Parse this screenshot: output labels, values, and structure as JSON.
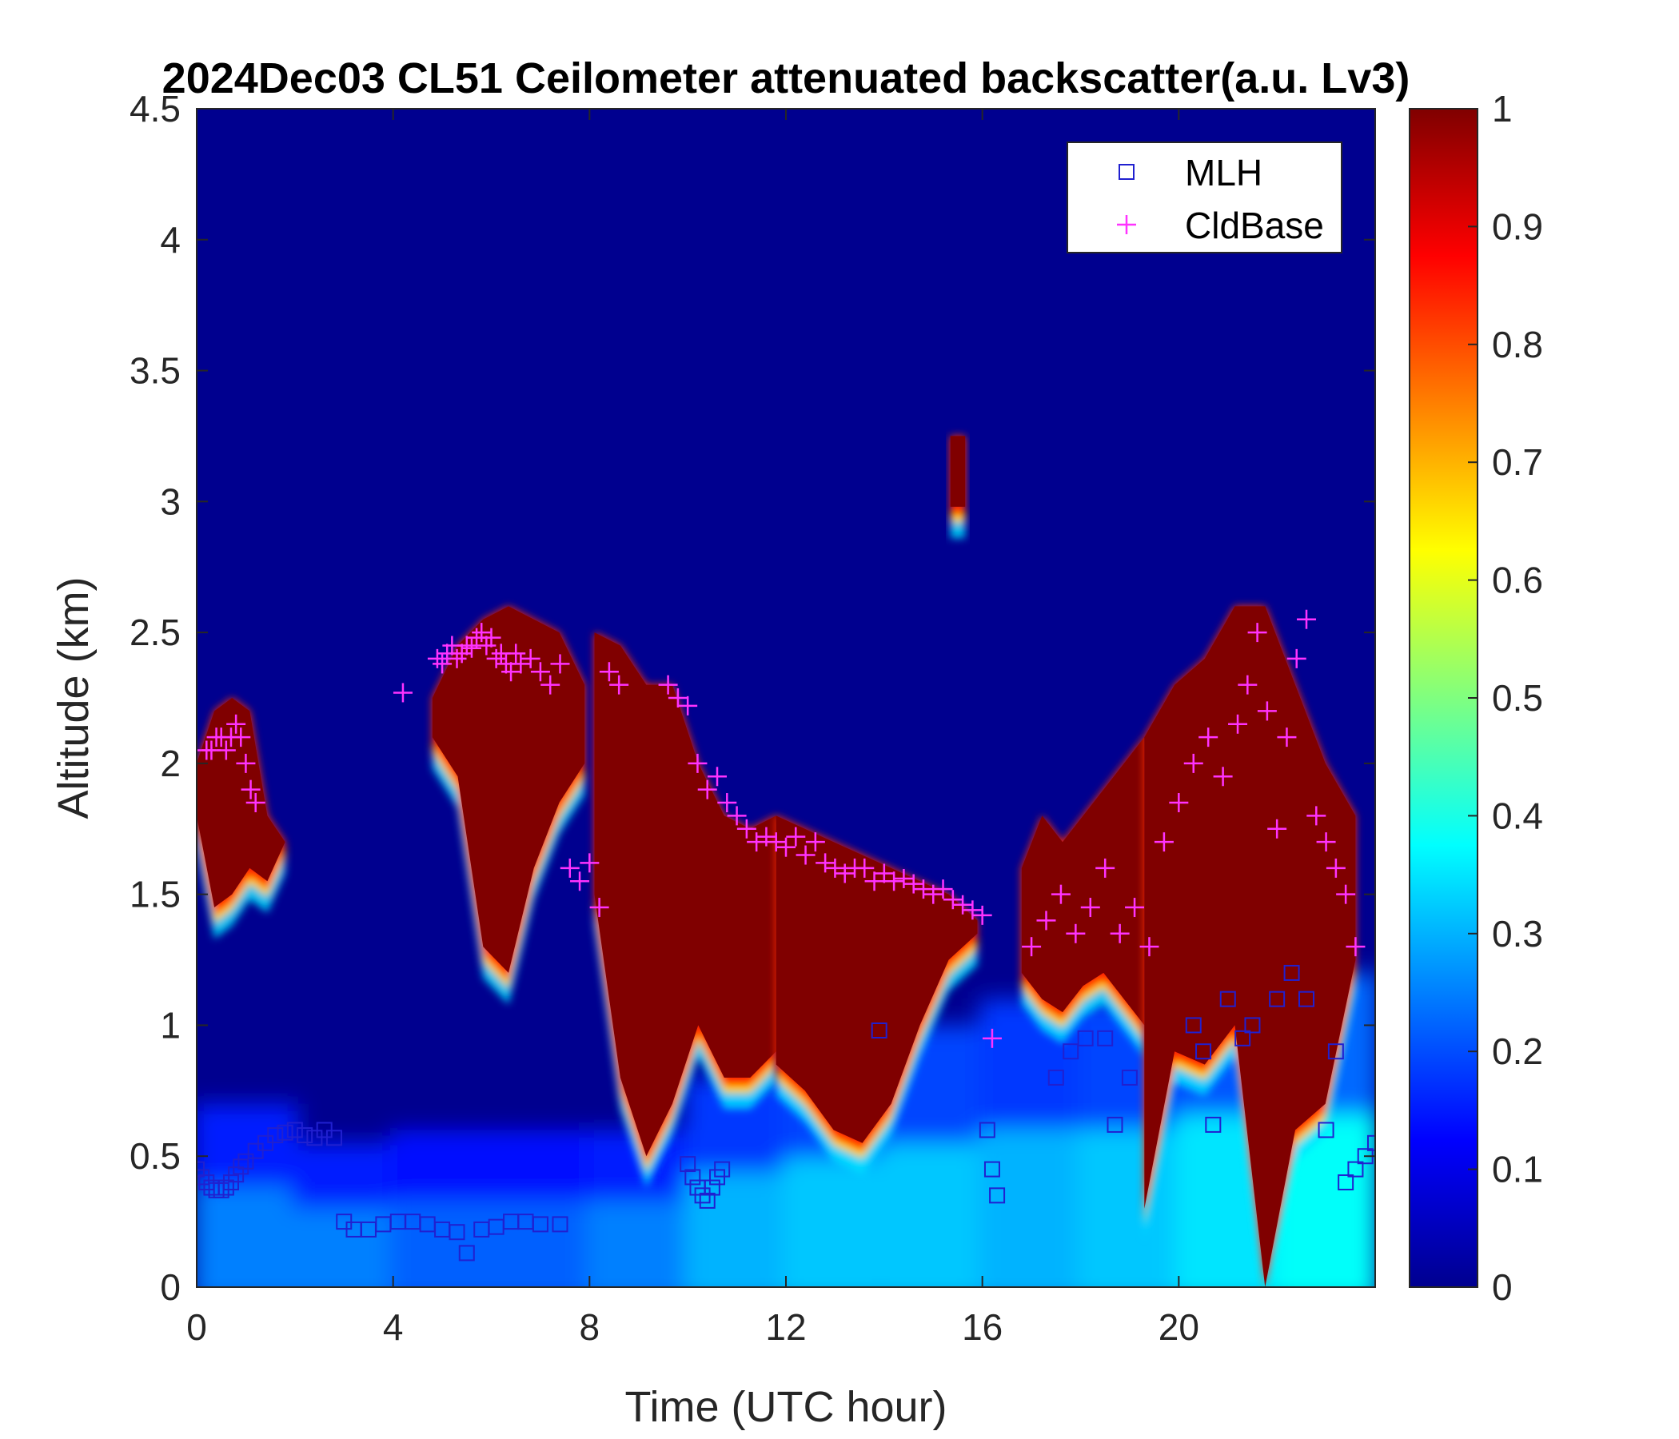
{
  "chart_data": {
    "type": "heatmap",
    "title": "2024Dec03 CL51 Ceilometer attenuated backscatter(a.u. Lv3)",
    "xlabel": "Time (UTC hour)",
    "ylabel": "Altitude (km)",
    "xlim": [
      0,
      24
    ],
    "ylim": [
      0,
      4.5
    ],
    "x_ticks": [
      0,
      4,
      8,
      12,
      16,
      20
    ],
    "x_tick_labels": [
      "0",
      "4",
      "8",
      "12",
      "16",
      "20"
    ],
    "y_ticks": [
      0,
      0.5,
      1,
      1.5,
      2,
      2.5,
      3,
      3.5,
      4,
      4.5
    ],
    "y_tick_labels": [
      "0",
      "0.5",
      "1",
      "1.5",
      "2",
      "2.5",
      "3",
      "3.5",
      "4",
      "4.5"
    ],
    "colorbar": {
      "colormap": "jet",
      "range": [
        0,
        1
      ],
      "ticks": [
        0,
        0.1,
        0.2,
        0.3,
        0.4,
        0.5,
        0.6,
        0.7,
        0.8,
        0.9,
        1
      ],
      "tick_labels": [
        "0",
        "0.1",
        "0.2",
        "0.3",
        "0.4",
        "0.5",
        "0.6",
        "0.7",
        "0.8",
        "0.9",
        "1"
      ]
    },
    "legend": {
      "position": "top-right",
      "entries": [
        "MLH",
        "CldBase"
      ]
    },
    "colors": {
      "mlh": "#2020d0",
      "cldbase": "#ff33ff",
      "background": "#00008f"
    },
    "cloud_layers": [
      {
        "x_start": 0.0,
        "x_end": 1.8,
        "top": [
          2.0,
          2.2,
          2.25,
          2.2,
          1.8,
          1.7
        ],
        "base": [
          1.8,
          1.45,
          1.5,
          1.6,
          1.55,
          1.7
        ]
      },
      {
        "x_start": 4.8,
        "x_end": 7.9,
        "top": [
          2.25,
          2.45,
          2.55,
          2.6,
          2.55,
          2.5,
          2.3
        ],
        "base": [
          2.1,
          1.95,
          1.3,
          1.2,
          1.6,
          1.85,
          2.0
        ]
      },
      {
        "x_start": 8.1,
        "x_end": 11.8,
        "top": [
          2.5,
          2.45,
          2.3,
          2.3,
          2.0,
          1.8,
          1.75,
          1.8
        ],
        "base": [
          1.5,
          0.8,
          0.5,
          0.7,
          1.0,
          0.8,
          0.8,
          0.9
        ]
      },
      {
        "x_start": 11.8,
        "x_end": 15.9,
        "top": [
          1.8,
          1.75,
          1.7,
          1.65,
          1.6,
          1.55,
          1.5,
          1.4
        ],
        "base": [
          0.85,
          0.75,
          0.6,
          0.55,
          0.7,
          1.0,
          1.25,
          1.35
        ]
      },
      {
        "x_start": 15.35,
        "x_end": 15.65,
        "top": [
          3.25,
          3.25
        ],
        "base": [
          2.98,
          2.98
        ]
      },
      {
        "x_start": 16.8,
        "x_end": 19.3,
        "top": [
          1.6,
          1.8,
          1.7,
          1.8,
          1.9,
          2.0,
          2.1
        ],
        "base": [
          1.2,
          1.1,
          1.05,
          1.15,
          1.2,
          1.1,
          1.0
        ]
      },
      {
        "x_start": 19.3,
        "x_end": 23.6,
        "top": [
          2.1,
          2.3,
          2.4,
          2.6,
          2.6,
          2.3,
          2.0,
          1.8
        ],
        "base": [
          0.3,
          0.9,
          0.85,
          1.0,
          0.0,
          0.6,
          0.7,
          1.25
        ]
      }
    ],
    "aerosol_layers": [
      {
        "x_start": 0.0,
        "x_end": 24.0,
        "top": [
          0.7,
          0.5,
          0.55,
          0.6,
          0.6,
          0.6,
          0.8,
          0.9,
          1.0,
          1.1,
          1.0,
          1.2,
          1.2
        ],
        "level": [
          0.25,
          0.25,
          0.22,
          0.22,
          0.25,
          0.3,
          0.32,
          0.32,
          0.3,
          0.32,
          0.35,
          0.38,
          0.33
        ]
      }
    ],
    "series": [
      {
        "name": "MLH",
        "marker": "square",
        "x": [
          0.0,
          0.1,
          0.2,
          0.3,
          0.4,
          0.5,
          0.6,
          0.7,
          0.8,
          0.9,
          1.0,
          1.2,
          1.4,
          1.6,
          1.8,
          2.0,
          2.2,
          2.4,
          2.6,
          2.8,
          3.0,
          3.2,
          3.5,
          3.8,
          4.1,
          4.4,
          4.7,
          5.0,
          5.3,
          5.5,
          5.8,
          6.1,
          6.4,
          6.7,
          7.0,
          7.4,
          10.0,
          10.1,
          10.2,
          10.3,
          10.4,
          10.5,
          10.6,
          10.7,
          13.9,
          16.1,
          16.2,
          16.3,
          17.5,
          17.8,
          18.1,
          18.5,
          18.7,
          19.0,
          20.3,
          20.5,
          20.7,
          21.0,
          21.3,
          21.5,
          22.0,
          22.3,
          22.6,
          23.0,
          23.2,
          23.4,
          23.6,
          23.8,
          24.0
        ],
        "y": [
          0.45,
          0.42,
          0.4,
          0.38,
          0.37,
          0.37,
          0.38,
          0.4,
          0.43,
          0.46,
          0.48,
          0.52,
          0.55,
          0.58,
          0.59,
          0.6,
          0.58,
          0.57,
          0.6,
          0.57,
          0.25,
          0.22,
          0.22,
          0.24,
          0.25,
          0.25,
          0.24,
          0.22,
          0.21,
          0.13,
          0.22,
          0.23,
          0.25,
          0.25,
          0.24,
          0.24,
          0.47,
          0.42,
          0.38,
          0.35,
          0.33,
          0.38,
          0.42,
          0.45,
          0.98,
          0.6,
          0.45,
          0.35,
          0.8,
          0.9,
          0.95,
          0.95,
          0.62,
          0.8,
          1.0,
          0.9,
          0.62,
          1.1,
          0.95,
          1.0,
          1.1,
          1.2,
          1.1,
          0.6,
          0.9,
          0.4,
          0.45,
          0.5,
          0.55
        ]
      },
      {
        "name": "CldBase",
        "marker": "plus",
        "x": [
          0.2,
          0.3,
          0.4,
          0.5,
          0.6,
          0.7,
          0.8,
          0.9,
          1.0,
          1.1,
          1.2,
          4.2,
          4.9,
          5.0,
          5.1,
          5.2,
          5.3,
          5.4,
          5.5,
          5.6,
          5.7,
          5.8,
          5.9,
          6.0,
          6.1,
          6.2,
          6.3,
          6.4,
          6.5,
          6.6,
          6.8,
          7.0,
          7.2,
          7.4,
          7.6,
          7.8,
          8.0,
          8.2,
          8.4,
          8.6,
          9.6,
          9.8,
          10.0,
          10.2,
          10.4,
          10.6,
          10.8,
          11.0,
          11.2,
          11.4,
          11.6,
          11.8,
          12.0,
          12.2,
          12.4,
          12.6,
          12.8,
          13.0,
          13.2,
          13.4,
          13.6,
          13.8,
          14.0,
          14.2,
          14.4,
          14.6,
          14.8,
          15.0,
          15.2,
          15.4,
          15.6,
          15.8,
          16.0,
          16.2,
          17.0,
          17.3,
          17.6,
          17.9,
          18.2,
          18.5,
          18.8,
          19.1,
          19.4,
          19.7,
          20.0,
          20.3,
          20.6,
          20.9,
          21.2,
          21.4,
          21.6,
          21.8,
          22.0,
          22.2,
          22.4,
          22.6,
          22.8,
          23.0,
          23.2,
          23.4,
          23.6
        ],
        "y": [
          2.05,
          2.05,
          2.1,
          2.1,
          2.05,
          2.1,
          2.15,
          2.1,
          2.0,
          1.9,
          1.85,
          2.27,
          2.4,
          2.38,
          2.42,
          2.45,
          2.4,
          2.42,
          2.45,
          2.44,
          2.48,
          2.5,
          2.45,
          2.48,
          2.4,
          2.42,
          2.38,
          2.35,
          2.42,
          2.38,
          2.4,
          2.35,
          2.3,
          2.38,
          1.6,
          1.55,
          1.62,
          1.45,
          2.35,
          2.3,
          2.3,
          2.25,
          2.22,
          2.0,
          1.9,
          1.95,
          1.85,
          1.8,
          1.75,
          1.7,
          1.72,
          1.7,
          1.68,
          1.72,
          1.65,
          1.7,
          1.62,
          1.6,
          1.58,
          1.6,
          1.6,
          1.55,
          1.58,
          1.55,
          1.56,
          1.54,
          1.52,
          1.5,
          1.52,
          1.48,
          1.46,
          1.44,
          1.42,
          0.95,
          1.3,
          1.4,
          1.5,
          1.35,
          1.45,
          1.6,
          1.35,
          1.45,
          1.3,
          1.7,
          1.85,
          2.0,
          2.1,
          1.95,
          2.15,
          2.3,
          2.5,
          2.2,
          1.75,
          2.1,
          2.4,
          2.55,
          1.8,
          1.7,
          1.6,
          1.5,
          1.3
        ]
      }
    ]
  }
}
